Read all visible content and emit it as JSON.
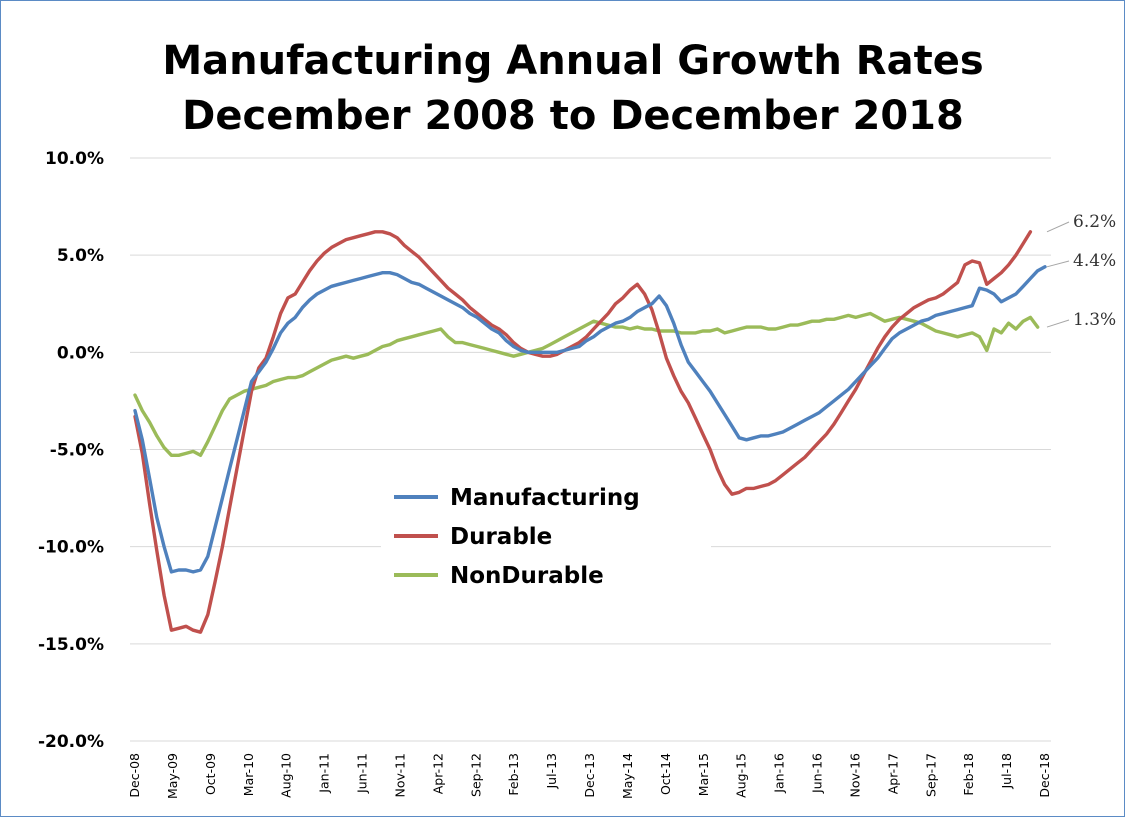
{
  "chart_data": {
    "type": "line",
    "title": "Manufacturing Annual Growth Rates",
    "subtitle": "December 2008 to December 2018",
    "xlabel": "",
    "ylabel": "",
    "ylim": [
      -20,
      10
    ],
    "y_ticks": [
      "10.0%",
      "5.0%",
      "0.0%",
      "-5.0%",
      "-10.0%",
      "-15.0%",
      "-20.0%"
    ],
    "x_tick_labels": [
      "Dec-08",
      "May-09",
      "Oct-09",
      "Mar-10",
      "Aug-10",
      "Jan-11",
      "Jun-11",
      "Nov-11",
      "Apr-12",
      "Sep-12",
      "Feb-13",
      "Jul-13",
      "Dec-13",
      "May-14",
      "Oct-14",
      "Mar-15",
      "Aug-15",
      "Jan-16",
      "Jun-16",
      "Nov-16",
      "Apr-17",
      "Sep-17",
      "Feb-18",
      "Jul-18",
      "Dec-18"
    ],
    "x_start": "Dec-08",
    "x_end": "Dec-18",
    "grid": true,
    "legend_position": "center-left",
    "series": [
      {
        "name": "Manufacturing",
        "color": "#4f81bd",
        "end_label": "4.4%",
        "values": [
          -3.0,
          -4.5,
          -6.5,
          -8.5,
          -10.0,
          -11.3,
          -11.2,
          -11.2,
          -11.3,
          -11.2,
          -10.5,
          -9.0,
          -7.5,
          -6.0,
          -4.5,
          -3.0,
          -1.5,
          -1.0,
          -0.5,
          0.2,
          1.0,
          1.5,
          1.8,
          2.3,
          2.7,
          3.0,
          3.2,
          3.4,
          3.5,
          3.6,
          3.7,
          3.8,
          3.9,
          4.0,
          4.1,
          4.1,
          4.0,
          3.8,
          3.6,
          3.5,
          3.3,
          3.1,
          2.9,
          2.7,
          2.5,
          2.3,
          2.0,
          1.8,
          1.5,
          1.2,
          1.0,
          0.6,
          0.3,
          0.1,
          0.0,
          0.0,
          0.0,
          0.0,
          0.0,
          0.1,
          0.2,
          0.3,
          0.6,
          0.8,
          1.1,
          1.3,
          1.5,
          1.6,
          1.8,
          2.1,
          2.3,
          2.5,
          2.9,
          2.4,
          1.5,
          0.4,
          -0.5,
          -1.0,
          -1.5,
          -2.0,
          -2.6,
          -3.2,
          -3.8,
          -4.4,
          -4.5,
          -4.4,
          -4.3,
          -4.3,
          -4.2,
          -4.1,
          -3.9,
          -3.7,
          -3.5,
          -3.3,
          -3.1,
          -2.8,
          -2.5,
          -2.2,
          -1.9,
          -1.5,
          -1.1,
          -0.7,
          -0.3,
          0.2,
          0.7,
          1.0,
          1.2,
          1.4,
          1.6,
          1.7,
          1.9,
          2.0,
          2.1,
          2.2,
          2.3,
          2.4,
          3.3,
          3.2,
          3.0,
          2.6,
          2.8,
          3.0,
          3.4,
          3.8,
          4.2,
          4.4
        ]
      },
      {
        "name": "Durable",
        "color": "#c0504d",
        "end_label": "6.2%",
        "values": [
          -3.3,
          -5.2,
          -7.8,
          -10.2,
          -12.5,
          -14.3,
          -14.2,
          -14.1,
          -14.3,
          -14.4,
          -13.5,
          -11.8,
          -10.0,
          -8.0,
          -6.0,
          -4.0,
          -2.0,
          -0.8,
          -0.3,
          0.8,
          2.0,
          2.8,
          3.0,
          3.6,
          4.2,
          4.7,
          5.1,
          5.4,
          5.6,
          5.8,
          5.9,
          6.0,
          6.1,
          6.2,
          6.2,
          6.1,
          5.9,
          5.5,
          5.2,
          4.9,
          4.5,
          4.1,
          3.7,
          3.3,
          3.0,
          2.7,
          2.3,
          2.0,
          1.7,
          1.4,
          1.2,
          0.9,
          0.5,
          0.2,
          0.0,
          -0.1,
          -0.2,
          -0.2,
          -0.1,
          0.1,
          0.3,
          0.5,
          0.8,
          1.2,
          1.6,
          2.0,
          2.5,
          2.8,
          3.2,
          3.5,
          3.0,
          2.2,
          1.0,
          -0.3,
          -1.2,
          -2.0,
          -2.6,
          -3.4,
          -4.2,
          -5.0,
          -6.0,
          -6.8,
          -7.3,
          -7.2,
          -7.0,
          -7.0,
          -6.9,
          -6.8,
          -6.6,
          -6.3,
          -6.0,
          -5.7,
          -5.4,
          -5.0,
          -4.6,
          -4.2,
          -3.7,
          -3.1,
          -2.5,
          -1.9,
          -1.2,
          -0.5,
          0.2,
          0.8,
          1.3,
          1.7,
          2.0,
          2.3,
          2.5,
          2.7,
          2.8,
          3.0,
          3.3,
          3.6,
          4.5,
          4.7,
          4.6,
          3.5,
          3.8,
          4.1,
          4.5,
          5.0,
          5.6,
          6.2
        ]
      },
      {
        "name": "NonDurable",
        "color": "#9bbb59",
        "end_label": "1.3%",
        "values": [
          -2.2,
          -3.0,
          -3.6,
          -4.3,
          -4.9,
          -5.3,
          -5.3,
          -5.2,
          -5.1,
          -5.3,
          -4.6,
          -3.8,
          -3.0,
          -2.4,
          -2.2,
          -2.0,
          -1.9,
          -1.8,
          -1.7,
          -1.5,
          -1.4,
          -1.3,
          -1.3,
          -1.2,
          -1.0,
          -0.8,
          -0.6,
          -0.4,
          -0.3,
          -0.2,
          -0.3,
          -0.2,
          -0.1,
          0.1,
          0.3,
          0.4,
          0.6,
          0.7,
          0.8,
          0.9,
          1.0,
          1.1,
          1.2,
          0.8,
          0.5,
          0.5,
          0.4,
          0.3,
          0.2,
          0.1,
          0.0,
          -0.1,
          -0.2,
          -0.1,
          0.0,
          0.1,
          0.2,
          0.4,
          0.6,
          0.8,
          1.0,
          1.2,
          1.4,
          1.6,
          1.5,
          1.4,
          1.3,
          1.3,
          1.2,
          1.3,
          1.2,
          1.2,
          1.1,
          1.1,
          1.1,
          1.0,
          1.0,
          1.0,
          1.1,
          1.1,
          1.2,
          1.0,
          1.1,
          1.2,
          1.3,
          1.3,
          1.3,
          1.2,
          1.2,
          1.3,
          1.4,
          1.4,
          1.5,
          1.6,
          1.6,
          1.7,
          1.7,
          1.8,
          1.9,
          1.8,
          1.9,
          2.0,
          1.8,
          1.6,
          1.7,
          1.8,
          1.7,
          1.6,
          1.5,
          1.3,
          1.1,
          1.0,
          0.9,
          0.8,
          0.9,
          1.0,
          0.8,
          0.1,
          1.2,
          1.0,
          1.5,
          1.2,
          1.6,
          1.8,
          1.3
        ]
      }
    ]
  }
}
